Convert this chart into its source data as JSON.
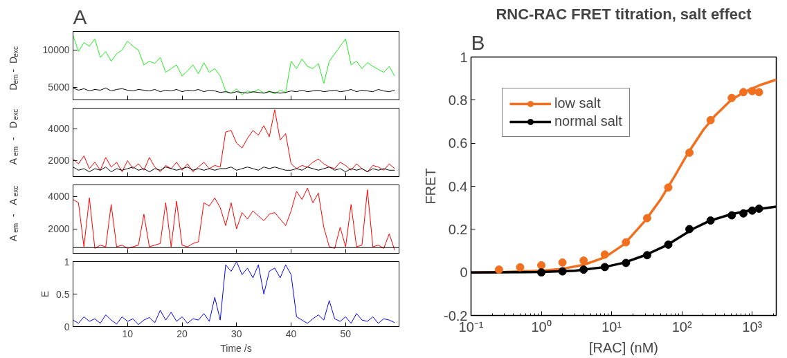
{
  "chart_data": [
    {
      "type": "line",
      "annotations": [
        "A"
      ],
      "ylabel": "D$_{em}$ - D$_{exc}$",
      "xlim": [
        0,
        59.8
      ],
      "xticks": [
        10,
        20,
        30,
        40,
        50
      ],
      "ylim": [
        3300,
        12500
      ],
      "yticks": [
        5000,
        10000
      ],
      "tick_labels": "y",
      "grid": false,
      "x": [
        0,
        1,
        2,
        3,
        4,
        5,
        6,
        7,
        8,
        9,
        10,
        11,
        12,
        13,
        14,
        15,
        16,
        17,
        18,
        19,
        20,
        21,
        22,
        23,
        24,
        25,
        26,
        27,
        28,
        29,
        30,
        31,
        32,
        33,
        34,
        35,
        36,
        37,
        38,
        39,
        40,
        41,
        42,
        43,
        44,
        45,
        46,
        47,
        48,
        49,
        50,
        51,
        52,
        53,
        54,
        55,
        56,
        57,
        58,
        59
      ],
      "series": [
        {
          "color": "#22ee22",
          "values": [
            12000,
            9800,
            11000,
            10500,
            11500,
            9000,
            9800,
            8500,
            9500,
            10000,
            11200,
            10500,
            10000,
            8000,
            8500,
            8200,
            9000,
            7000,
            7500,
            8000,
            6500,
            7200,
            8000,
            6800,
            8300,
            7000,
            7500,
            6500,
            4500,
            4200,
            4800,
            4000,
            4500,
            4300,
            4700,
            4200,
            4500,
            4100,
            4600,
            4300,
            8500,
            7500,
            8800,
            7800,
            7500,
            8200,
            5500,
            8500,
            9500,
            10500,
            11500,
            8000,
            8500,
            7500,
            8300,
            7800,
            7400,
            7000,
            7800,
            6500
          ]
        },
        {
          "color": "#000000",
          "values": [
            4900,
            4600,
            4800,
            4500,
            4700,
            4600,
            4900,
            4500,
            4700,
            4800,
            4600,
            4500,
            4700,
            4600,
            4500,
            4700,
            4400,
            4600,
            4500,
            4700,
            4400,
            4600,
            4500,
            4700,
            4400,
            4600,
            4500,
            4300,
            4400,
            4200,
            4400,
            4300,
            4200,
            4400,
            4300,
            4200,
            4400,
            4300,
            4200,
            4300,
            4500,
            4400,
            4600,
            4400,
            4500,
            4600,
            4400,
            4500,
            4600,
            4400,
            4500,
            4700,
            4400,
            4600,
            4500,
            4400,
            4700,
            4500,
            4400,
            4600
          ]
        }
      ]
    },
    {
      "type": "line",
      "ylabel": "A$_{em}$ - D$_{exc}$",
      "xlim": [
        0,
        59.8
      ],
      "xticks": [
        10,
        20,
        30,
        40,
        50
      ],
      "ylim": [
        1000,
        5300
      ],
      "yticks": [
        2000,
        4000
      ],
      "tick_labels": "y",
      "grid": false,
      "x": [
        0,
        1,
        2,
        3,
        4,
        5,
        6,
        7,
        8,
        9,
        10,
        11,
        12,
        13,
        14,
        15,
        16,
        17,
        18,
        19,
        20,
        21,
        22,
        23,
        24,
        25,
        26,
        27,
        28,
        29,
        30,
        31,
        32,
        33,
        34,
        35,
        36,
        37,
        38,
        39,
        40,
        41,
        42,
        43,
        44,
        45,
        46,
        47,
        48,
        49,
        50,
        51,
        52,
        53,
        54,
        55,
        56,
        57,
        58,
        59
      ],
      "series": [
        {
          "color": "#ff0000",
          "values": [
            2100,
            1800,
            2300,
            1500,
            1900,
            1400,
            2200,
            1600,
            1900,
            1300,
            2000,
            1500,
            1800,
            1400,
            2200,
            1600,
            1300,
            1700,
            1500,
            1900,
            1400,
            1800,
            1300,
            1600,
            1900,
            1500,
            1700,
            1600,
            3800,
            3900,
            3100,
            2800,
            3400,
            3900,
            3600,
            4200,
            3500,
            5200,
            3300,
            3700,
            1800,
            1500,
            1700,
            1600,
            1900,
            2100,
            1800,
            1600,
            1500,
            1900,
            1700,
            1400,
            1800,
            1500,
            1300,
            1700,
            1600,
            1400,
            1800,
            1500
          ]
        },
        {
          "color": "#000000",
          "values": [
            1600,
            1400,
            1500,
            1300,
            1500,
            1400,
            1600,
            1300,
            1500,
            1400,
            1500,
            1600,
            1400,
            1500,
            1300,
            1500,
            1400,
            1600,
            1500,
            1400,
            1500,
            1600,
            1400,
            1500,
            1400,
            1500,
            1400,
            1500,
            1500,
            1600,
            1400,
            1500,
            1600,
            1500,
            1400,
            1600,
            1500,
            1600,
            1500,
            1400,
            1400,
            1500,
            1400,
            1600,
            1500,
            1400,
            1500,
            1600,
            1400,
            1500,
            1300,
            1500,
            1400,
            1500,
            1300,
            1500,
            1400,
            1500,
            1400,
            1400
          ]
        }
      ]
    },
    {
      "type": "line",
      "ylabel": "A$_{em}$ - A$_{exc}$",
      "xlim": [
        0,
        59.8
      ],
      "xticks": [
        10,
        20,
        30,
        40,
        50
      ],
      "ylim": [
        500,
        4700
      ],
      "yticks": [
        2000,
        4000
      ],
      "tick_labels": "y",
      "grid": false,
      "x": [
        0,
        1,
        2,
        3,
        4,
        5,
        6,
        7,
        8,
        9,
        10,
        11,
        12,
        13,
        14,
        15,
        16,
        17,
        18,
        19,
        20,
        21,
        22,
        23,
        24,
        25,
        26,
        27,
        28,
        29,
        30,
        31,
        32,
        33,
        34,
        35,
        36,
        37,
        38,
        39,
        40,
        41,
        42,
        43,
        44,
        45,
        46,
        47,
        48,
        49,
        50,
        51,
        52,
        53,
        54,
        55,
        56,
        57,
        58,
        59
      ],
      "ref_lines": [
        {
          "axis": "y",
          "value": 850,
          "color": "#000000"
        }
      ],
      "series": [
        {
          "color": "#ff0000",
          "values": [
            3800,
            3600,
            900,
            3900,
            800,
            1000,
            900,
            3500,
            900,
            1000,
            800,
            900,
            1000,
            2900,
            900,
            1000,
            1100,
            3600,
            900,
            3700,
            1000,
            900,
            1100,
            1200,
            3600,
            3400,
            3900,
            3300,
            2200,
            3600,
            2000,
            3000,
            2600,
            3100,
            2800,
            2500,
            2900,
            3000,
            2600,
            2200,
            3100,
            4300,
            3800,
            4500,
            3600,
            4200,
            2100,
            900,
            800,
            2100,
            900,
            3500,
            900,
            1000,
            4400,
            900,
            1000,
            800,
            1700,
            700
          ]
        }
      ]
    },
    {
      "type": "line",
      "xlabel": "Time /s",
      "ylabel": "E",
      "xlim": [
        0,
        59.8
      ],
      "xticks": [
        10,
        20,
        30,
        40,
        50
      ],
      "ylim": [
        0,
        1
      ],
      "yticks": [
        0,
        0.5,
        1
      ],
      "grid": false,
      "x": [
        0,
        1,
        2,
        3,
        4,
        5,
        6,
        7,
        8,
        9,
        10,
        11,
        12,
        13,
        14,
        15,
        16,
        17,
        18,
        19,
        20,
        21,
        22,
        23,
        24,
        25,
        26,
        27,
        28,
        29,
        30,
        31,
        32,
        33,
        34,
        35,
        36,
        37,
        38,
        39,
        40,
        41,
        42,
        43,
        44,
        45,
        46,
        47,
        48,
        49,
        50,
        51,
        52,
        53,
        54,
        55,
        56,
        57,
        58,
        59
      ],
      "series": [
        {
          "color": "#0000ff",
          "values": [
            0.1,
            0.05,
            0.15,
            0.08,
            0.12,
            0.05,
            0.18,
            0.1,
            0.04,
            0.15,
            0.08,
            0.12,
            0.03,
            0.1,
            0.14,
            0.06,
            0.25,
            0.1,
            0.22,
            0.08,
            0.15,
            0.05,
            0.12,
            0.1,
            0.2,
            0.08,
            0.45,
            0.1,
            0.95,
            0.85,
            1.0,
            0.8,
            0.9,
            0.75,
            0.95,
            0.5,
            0.85,
            0.9,
            0.75,
            0.95,
            0.8,
            0.15,
            0.1,
            0.05,
            0.12,
            0.18,
            0.1,
            0.4,
            0.12,
            0.08,
            0.15,
            0.05,
            0.2,
            0.1,
            0.08,
            0.15,
            0.05,
            0.12,
            0.1,
            0.06
          ]
        }
      ]
    },
    {
      "type": "scatter",
      "annotations": [
        "B"
      ],
      "title": "RNC-RAC FRET titration, salt effect",
      "xlabel": "[RAC] (nM)",
      "ylabel": "FRET",
      "log": "x",
      "grid": false,
      "legend": "top left",
      "xlim": [
        0.1,
        2200
      ],
      "xticks": [
        {
          "value": 0.1,
          "label": "10⁻¹"
        },
        {
          "value": 1,
          "label": "10⁰"
        },
        {
          "value": 10,
          "label": "10¹"
        },
        {
          "value": 100,
          "label": "10²"
        },
        {
          "value": 1000,
          "label": "10³"
        }
      ],
      "ylim": [
        -0.2,
        1
      ],
      "yticks": [
        -0.2,
        0,
        0.2,
        0.4,
        0.6,
        0.8,
        1
      ],
      "series": [
        {
          "type": "line",
          "marker": "none",
          "color": "#f07020",
          "x": [
            0.1,
            0.3,
            1,
            2,
            4,
            8,
            15,
            30,
            50,
            80,
            120,
            200,
            300,
            500,
            800,
            1300,
            2200
          ],
          "values": [
            0,
            0.002,
            0.008,
            0.017,
            0.035,
            0.07,
            0.13,
            0.24,
            0.34,
            0.45,
            0.55,
            0.66,
            0.73,
            0.8,
            0.84,
            0.87,
            0.895
          ]
        },
        {
          "type": "line",
          "marker": "none",
          "color": "#000000",
          "x": [
            0.1,
            1,
            3,
            8,
            15,
            30,
            60,
            100,
            150,
            250,
            500,
            1000,
            2200
          ],
          "values": [
            0,
            0.002,
            0.008,
            0.025,
            0.045,
            0.08,
            0.125,
            0.17,
            0.205,
            0.24,
            0.27,
            0.29,
            0.305
          ]
        },
        {
          "name": "low salt",
          "marker": "circle",
          "color": "#f07020",
          "x": [
            0.25,
            0.5,
            1,
            2,
            4,
            8,
            16,
            32,
            64,
            128,
            256,
            512,
            750,
            1000,
            1250
          ],
          "values": [
            0.013,
            0.024,
            0.033,
            0.046,
            0.055,
            0.083,
            0.14,
            0.252,
            0.394,
            0.556,
            0.707,
            0.81,
            0.837,
            0.842,
            0.837
          ]
        },
        {
          "name": "normal salt",
          "marker": "circle",
          "color": "#000000",
          "x": [
            1,
            2,
            4,
            8,
            16,
            32,
            64,
            128,
            256,
            512,
            750,
            1000,
            1250
          ],
          "values": [
            0,
            0.005,
            0.013,
            0.025,
            0.044,
            0.08,
            0.129,
            0.201,
            0.241,
            0.265,
            0.274,
            0.287,
            0.296
          ]
        }
      ]
    }
  ]
}
